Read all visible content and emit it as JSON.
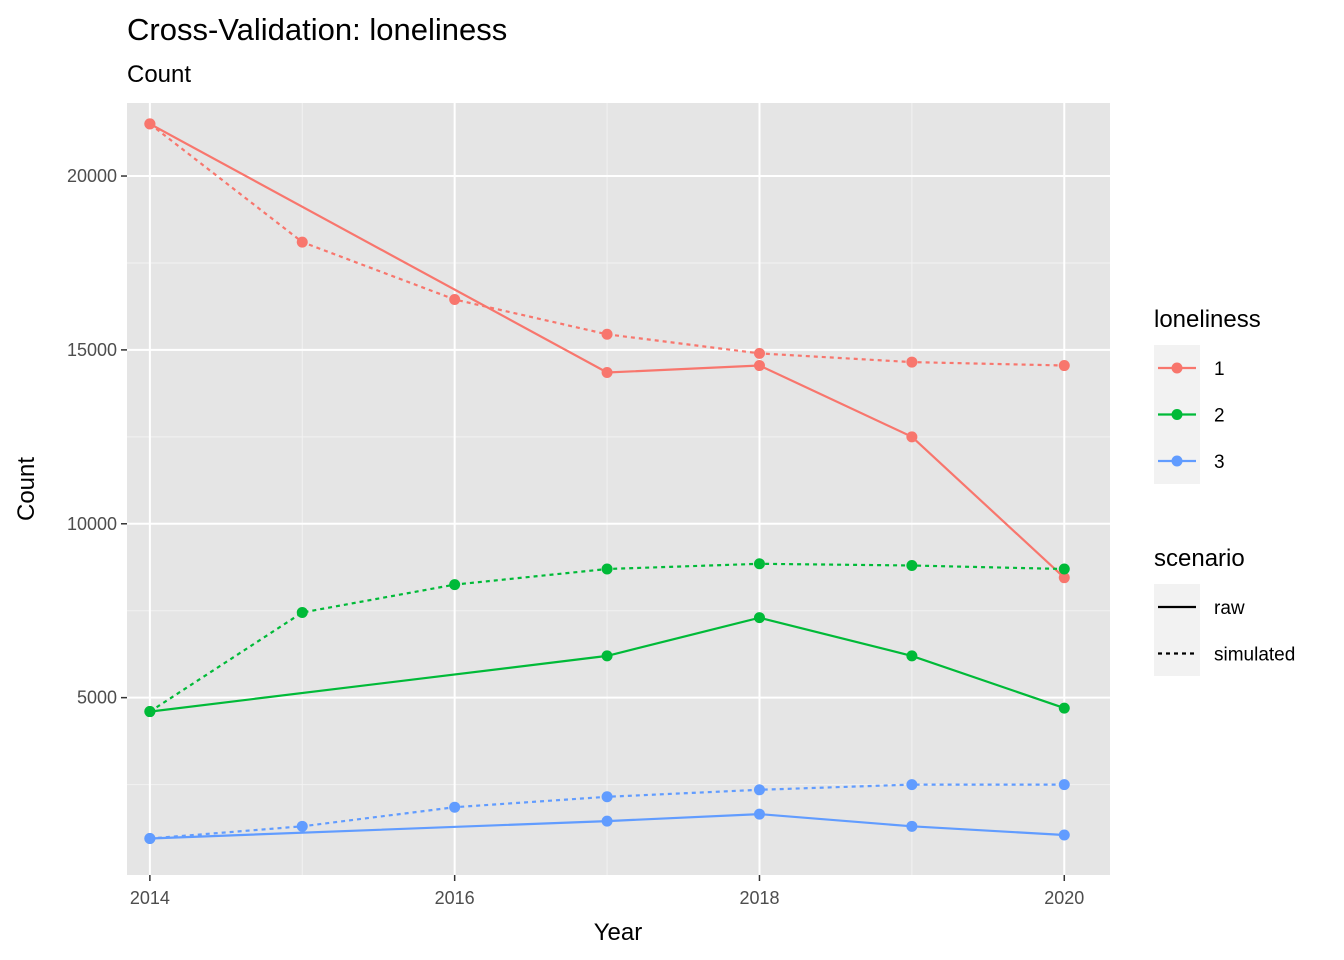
{
  "chart_data": {
    "type": "line",
    "title": "Cross-Validation: loneliness",
    "subtitle": "Count",
    "xlabel": "Year",
    "ylabel": "Count",
    "xlim": [
      2013.85,
      2020.3
    ],
    "ylim": [
      -100,
      22100
    ],
    "x_ticks": [
      2014,
      2016,
      2018,
      2020
    ],
    "x_tick_labels": [
      "2014",
      "2016",
      "2018",
      "2020"
    ],
    "y_ticks": [
      5000,
      10000,
      15000,
      20000
    ],
    "y_tick_labels": [
      "5000",
      "10000",
      "15000",
      "20000"
    ],
    "grid": true,
    "panel_background": "#e5e5e5",
    "x": [
      2014,
      2015,
      2016,
      2017,
      2018,
      2019,
      2020
    ],
    "series": [
      {
        "name": "raw",
        "group": "1",
        "scenario": "raw",
        "color": "#F8766D",
        "dashed": false,
        "points": [
          [
            2014,
            21500
          ],
          [
            2017,
            14350
          ],
          [
            2018,
            14550
          ],
          [
            2019,
            12500
          ],
          [
            2020,
            8450
          ]
        ]
      },
      {
        "name": "simulated",
        "group": "1",
        "scenario": "simulated",
        "color": "#F8766D",
        "dashed": true,
        "points": [
          [
            2014,
            21500
          ],
          [
            2015,
            18100
          ],
          [
            2016,
            16450
          ],
          [
            2017,
            15450
          ],
          [
            2018,
            14900
          ],
          [
            2019,
            14650
          ],
          [
            2020,
            14550
          ]
        ]
      },
      {
        "name": "raw",
        "group": "2",
        "scenario": "raw",
        "color": "#00BA38",
        "dashed": false,
        "points": [
          [
            2014,
            4600
          ],
          [
            2017,
            6200
          ],
          [
            2018,
            7300
          ],
          [
            2019,
            6200
          ],
          [
            2020,
            4700
          ]
        ]
      },
      {
        "name": "simulated",
        "group": "2",
        "scenario": "simulated",
        "color": "#00BA38",
        "dashed": true,
        "points": [
          [
            2014,
            4600
          ],
          [
            2015,
            7450
          ],
          [
            2016,
            8250
          ],
          [
            2017,
            8700
          ],
          [
            2018,
            8850
          ],
          [
            2019,
            8800
          ],
          [
            2020,
            8700
          ]
        ]
      },
      {
        "name": "raw",
        "group": "3",
        "scenario": "raw",
        "color": "#619CFF",
        "dashed": false,
        "points": [
          [
            2014,
            950
          ],
          [
            2017,
            1450
          ],
          [
            2018,
            1650
          ],
          [
            2019,
            1300
          ],
          [
            2020,
            1050
          ]
        ]
      },
      {
        "name": "simulated",
        "group": "3",
        "scenario": "simulated",
        "color": "#619CFF",
        "dashed": true,
        "points": [
          [
            2014,
            950
          ],
          [
            2015,
            1300
          ],
          [
            2016,
            1850
          ],
          [
            2017,
            2150
          ],
          [
            2018,
            2350
          ],
          [
            2019,
            2500
          ],
          [
            2020,
            2500
          ]
        ]
      }
    ],
    "legend": {
      "placement": "right",
      "color": {
        "title": "loneliness",
        "items": [
          {
            "label": "1",
            "color": "#F8766D"
          },
          {
            "label": "2",
            "color": "#00BA38"
          },
          {
            "label": "3",
            "color": "#619CFF"
          }
        ]
      },
      "linetype": {
        "title": "scenario",
        "items": [
          {
            "label": "raw",
            "dashed": false
          },
          {
            "label": "simulated",
            "dashed": true
          }
        ]
      }
    }
  }
}
